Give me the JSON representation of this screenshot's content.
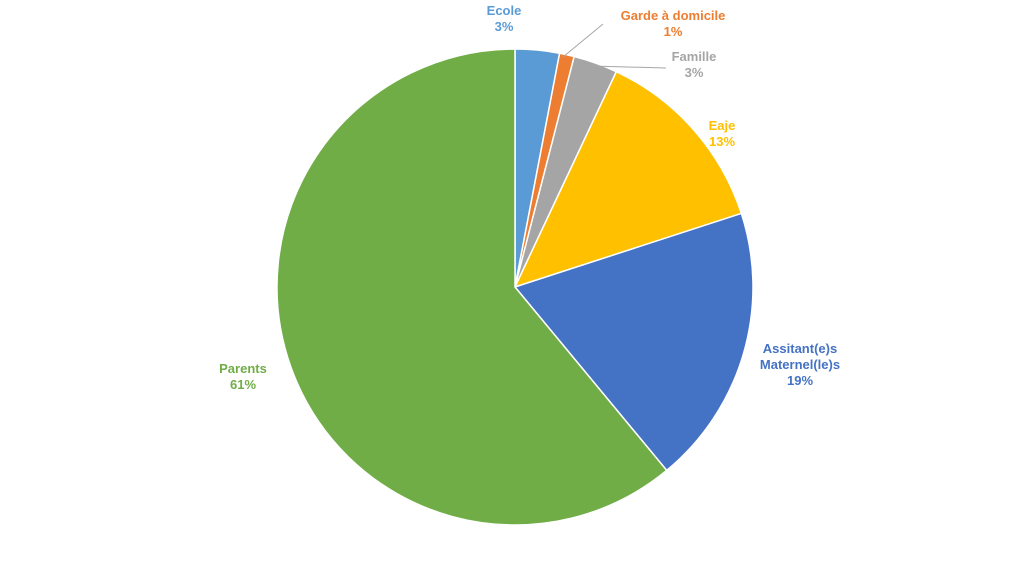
{
  "chart_data": {
    "type": "pie",
    "categories": [
      "Ecole",
      "Garde à domicile",
      "Famille",
      "Eaje",
      "Assitant(e)s Maternel(le)s",
      "Parents"
    ],
    "values": [
      3,
      1,
      3,
      13,
      19,
      61
    ],
    "value_labels": [
      "3%",
      "1%",
      "3%",
      "13%",
      "19%",
      "61%"
    ],
    "colors": [
      "#5b9bd5",
      "#ed7d31",
      "#a5a5a5",
      "#ffc000",
      "#4472c4",
      "#70ad47"
    ]
  }
}
